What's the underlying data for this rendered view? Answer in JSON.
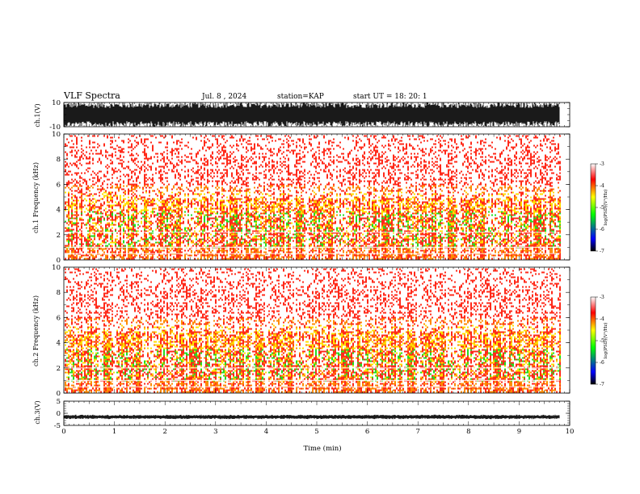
{
  "header": {
    "title": "VLF Spectra",
    "date": "Jul. 8 , 2024",
    "station": "station=KAP",
    "start": "start UT = 18: 20: 1"
  },
  "chart_data": [
    {
      "type": "line",
      "title": "",
      "ylabel": "ch.1(V)",
      "xlabel": "",
      "xlim": [
        0,
        10
      ],
      "ylim": [
        -10,
        10
      ],
      "yticks": [
        "-10",
        "10"
      ],
      "data_extent_min": 9.8,
      "envelope": "dense oscillating waveform filling roughly -10 to 10 V",
      "color": "#000000"
    },
    {
      "type": "heatmap",
      "title": "",
      "ylabel": "ch.1 Frequency (kHz)",
      "xlim": [
        0,
        10
      ],
      "ylim": [
        0,
        10
      ],
      "yticks": [
        "0",
        "2",
        "4",
        "6",
        "8",
        "10"
      ],
      "data_extent_min": 9.8,
      "colorbar": {
        "label": "log(PSD)(V²/Hz)",
        "range": [
          -7,
          -3
        ],
        "ticks": [
          "-3",
          "-4",
          "-5",
          "-6",
          "-7"
        ],
        "colors": [
          "#000000",
          "#0000ff",
          "#00ff00",
          "#ffff00",
          "#ff0000",
          "#ffffff"
        ]
      },
      "features": {
        "dense_band_khz": [
          1,
          5
        ],
        "strong_band_khz": [
          1,
          4
        ],
        "horizontal_lines_khz": [
          0.5,
          1.0,
          2.2
        ]
      }
    },
    {
      "type": "heatmap",
      "title": "",
      "ylabel": "ch.2 Frequency (kHz)",
      "xlim": [
        0,
        10
      ],
      "ylim": [
        0,
        10
      ],
      "yticks": [
        "0",
        "2",
        "4",
        "6",
        "8",
        "10"
      ],
      "data_extent_min": 9.8,
      "colorbar": {
        "label": "log(PSD)(V²/Hz)",
        "range": [
          -7,
          -3
        ],
        "ticks": [
          "-3",
          "-4",
          "-5",
          "-6",
          "-7"
        ],
        "colors": [
          "#000000",
          "#0000ff",
          "#00ff00",
          "#ffff00",
          "#ff0000",
          "#ffffff"
        ]
      },
      "features": {
        "dense_band_khz": [
          1,
          5
        ],
        "strong_band_khz": [
          1,
          3.5
        ],
        "horizontal_lines_khz": [
          0.5,
          1.0,
          2.0
        ]
      }
    },
    {
      "type": "line",
      "title": "",
      "ylabel": "ch.3(V)",
      "xlabel": "Time (min)",
      "xlim": [
        0,
        10
      ],
      "ylim": [
        -5,
        5
      ],
      "yticks": [
        "-5",
        "0",
        "5"
      ],
      "xticks": [
        "0",
        "1",
        "2",
        "3",
        "4",
        "5",
        "6",
        "7",
        "8",
        "9",
        "10"
      ],
      "data_extent_min": 9.8,
      "level": -1.5,
      "envelope": "narrow band centred near -1.5 V",
      "color": "#000000"
    }
  ]
}
